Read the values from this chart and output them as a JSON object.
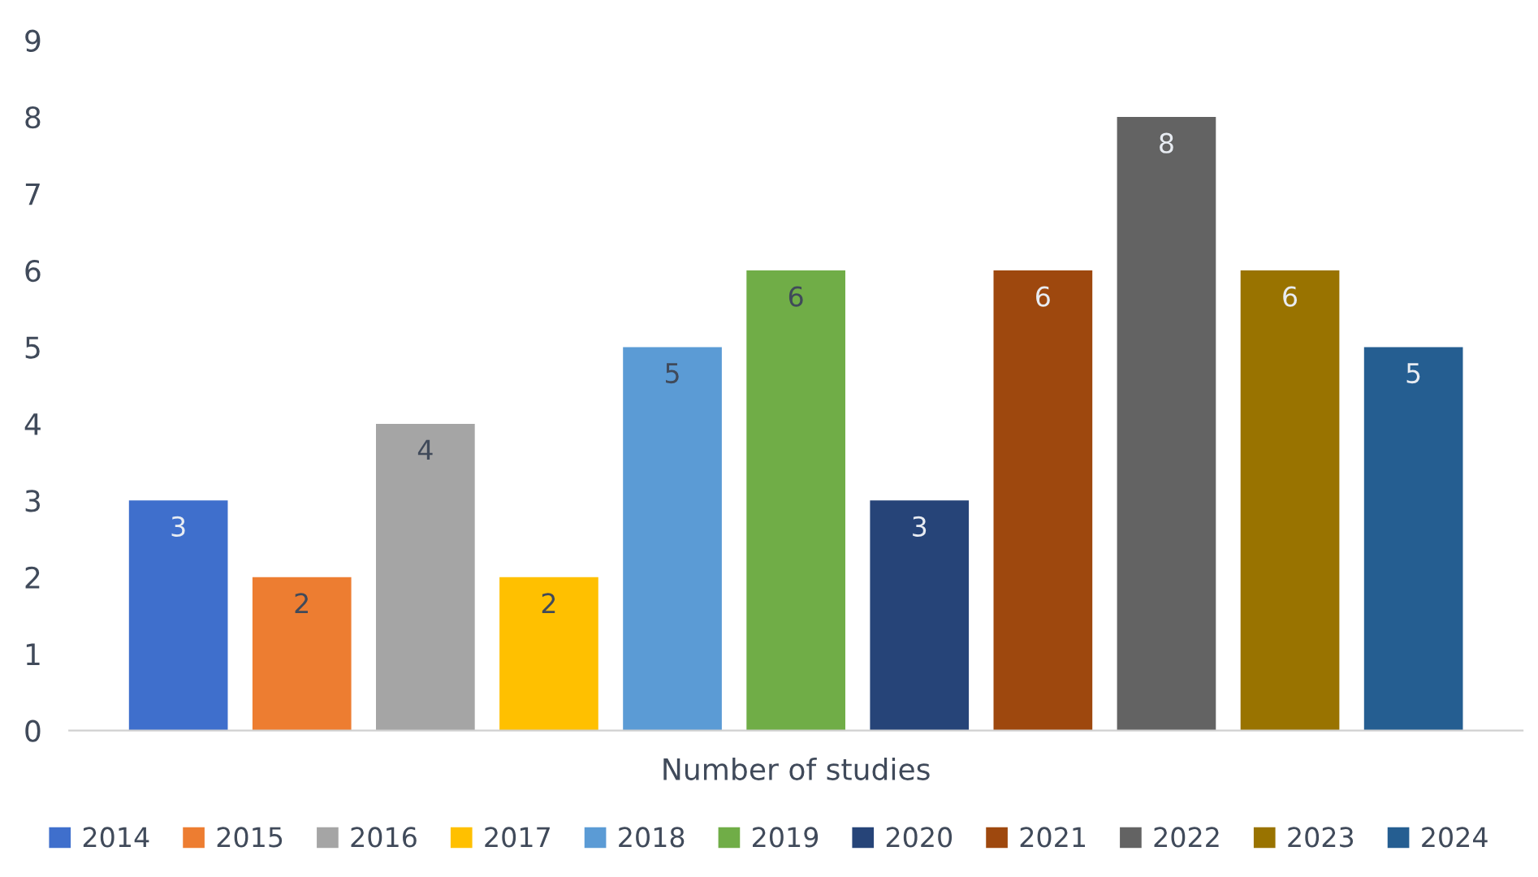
{
  "chart_data": {
    "type": "bar",
    "categories": [
      "Number of studies"
    ],
    "series": [
      {
        "name": "2014",
        "color": "#3f6fcc",
        "values": [
          3
        ]
      },
      {
        "name": "2015",
        "color": "#ed7d31",
        "values": [
          2
        ]
      },
      {
        "name": "2016",
        "color": "#a5a5a5",
        "values": [
          4
        ]
      },
      {
        "name": "2017",
        "color": "#ffc000",
        "values": [
          2
        ]
      },
      {
        "name": "2018",
        "color": "#5b9bd5",
        "values": [
          5
        ]
      },
      {
        "name": "2019",
        "color": "#70ad47",
        "values": [
          6
        ]
      },
      {
        "name": "2020",
        "color": "#264478",
        "values": [
          3
        ]
      },
      {
        "name": "2021",
        "color": "#9e480e",
        "values": [
          6
        ]
      },
      {
        "name": "2022",
        "color": "#636363",
        "values": [
          8
        ]
      },
      {
        "name": "2023",
        "color": "#997300",
        "values": [
          6
        ]
      },
      {
        "name": "2024",
        "color": "#255e91",
        "values": [
          5
        ]
      }
    ],
    "ylim": [
      0,
      9
    ],
    "yticks": [
      0,
      1,
      2,
      3,
      4,
      5,
      6,
      7,
      8,
      9
    ],
    "grid": false,
    "legend": "bottom",
    "data_labels": true
  }
}
